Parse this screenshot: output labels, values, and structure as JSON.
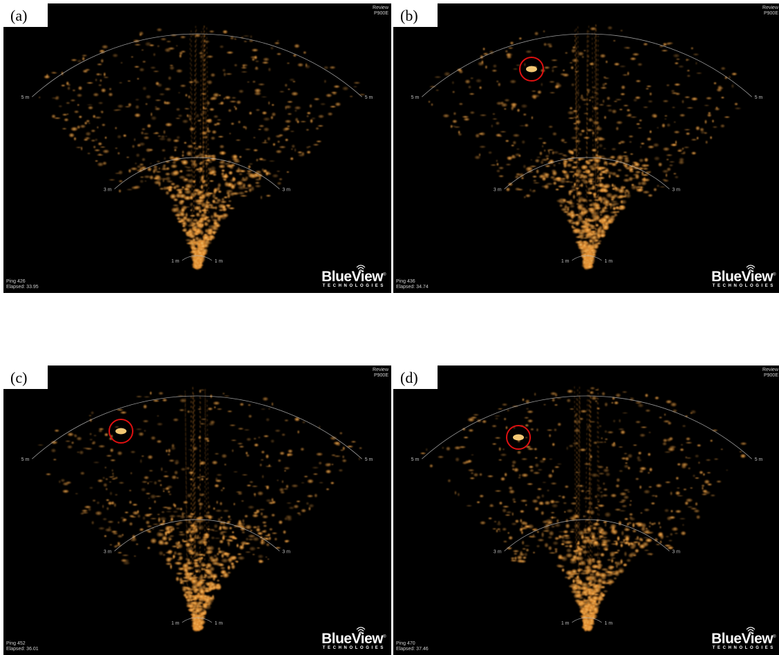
{
  "panels": [
    {
      "label": "(a)",
      "mode": "Review",
      "model": "P900E",
      "ping": "Ping 426",
      "elapsed": "Elapsed: 33.95",
      "target_marked": false
    },
    {
      "label": "(b)",
      "mode": "Review",
      "model": "P900E",
      "ping": "Ping 436",
      "elapsed": "Elapsed: 34.74",
      "target_marked": true
    },
    {
      "label": "(c)",
      "mode": "Review",
      "model": "P900E",
      "ping": "Ping 452",
      "elapsed": "Elapsed: 36.01",
      "target_marked": true
    },
    {
      "label": "(d)",
      "mode": "Review",
      "model": "P900E",
      "ping": "Ping 470",
      "elapsed": "Elapsed: 37.46",
      "target_marked": true
    }
  ],
  "range_labels": {
    "near": "1 m",
    "mid": "3 m",
    "far": "5 m"
  },
  "logo": {
    "name": "BlueView",
    "mark": "®",
    "subtitle": "TECHNOLOGIES"
  },
  "colors": {
    "background": "#000000",
    "echo": "#e08a2c",
    "echo_bright": "#ffd27a",
    "marker": "#e01010",
    "range_arc": "#b4b4b4"
  }
}
